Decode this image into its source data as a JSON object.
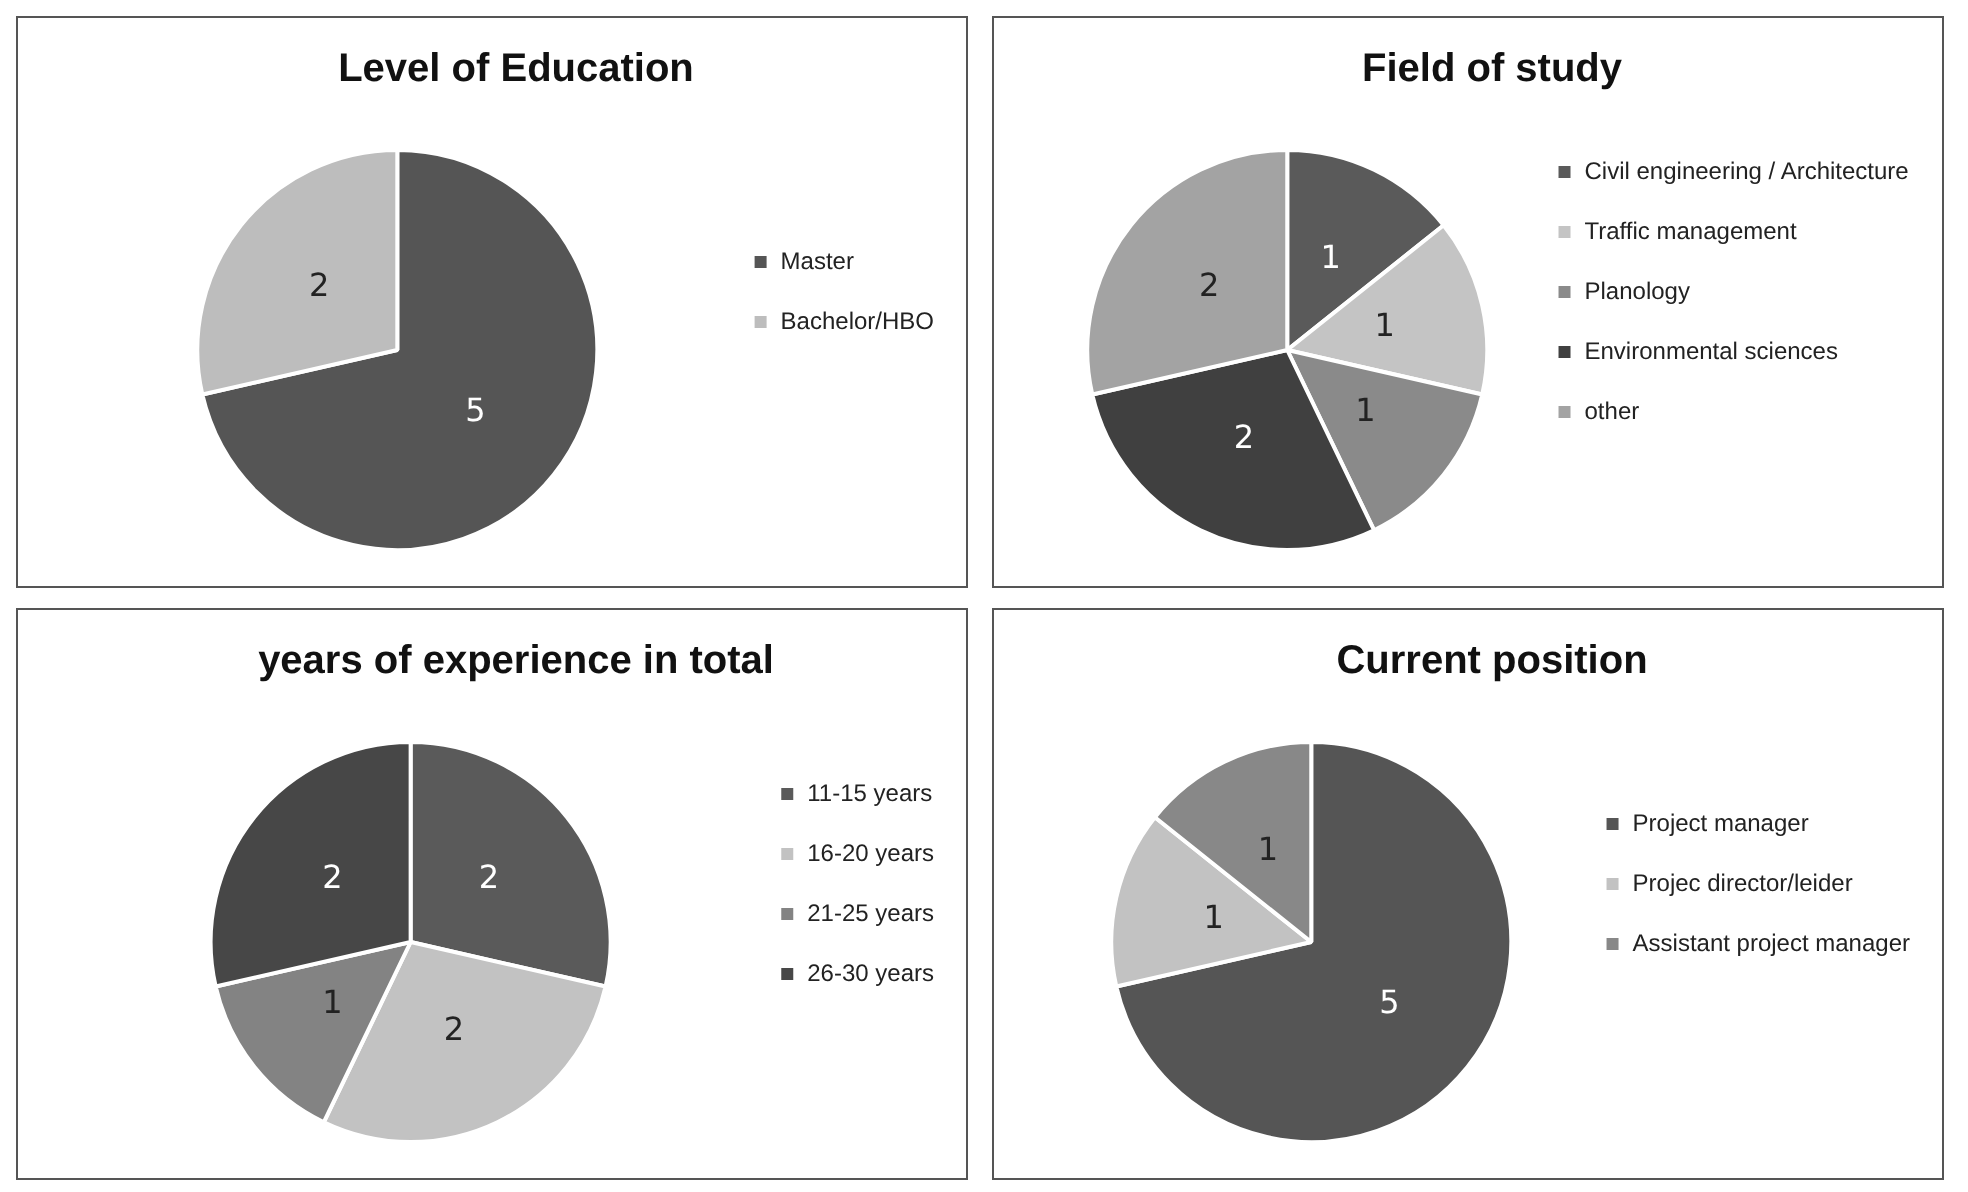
{
  "chart_data": [
    {
      "type": "pie",
      "title": "Level of Education",
      "categories": [
        "Master",
        "Bachelor/HBO"
      ],
      "values": [
        5,
        2
      ],
      "colors": [
        "#555555",
        "#bdbdbd"
      ],
      "data_labels": true,
      "legend": "right"
    },
    {
      "type": "pie",
      "title": "Field of study",
      "categories": [
        "Civil engineering / Architecture",
        "Traffic management",
        "Planology",
        "Environmental sciences",
        "other"
      ],
      "values": [
        1,
        1,
        1,
        2,
        2
      ],
      "colors": [
        "#5a5a5a",
        "#c4c4c4",
        "#8a8a8a",
        "#404040",
        "#a3a3a3"
      ],
      "data_labels": true,
      "legend": "right"
    },
    {
      "type": "pie",
      "title": "years of experience in total",
      "categories": [
        "11-15 years",
        "16-20 years",
        "21-25 years",
        "26-30 years"
      ],
      "values": [
        2,
        2,
        1,
        2
      ],
      "colors": [
        "#5a5a5a",
        "#c2c2c2",
        "#838383",
        "#474747"
      ],
      "data_labels": true,
      "legend": "right"
    },
    {
      "type": "pie",
      "title": "Current position",
      "categories": [
        "Project manager",
        "Projec director/leider",
        "Assistant project manager"
      ],
      "values": [
        5,
        1,
        1
      ],
      "colors": [
        "#555555",
        "#c2c2c2",
        "#888888"
      ],
      "data_labels": true,
      "legend": "right"
    }
  ]
}
